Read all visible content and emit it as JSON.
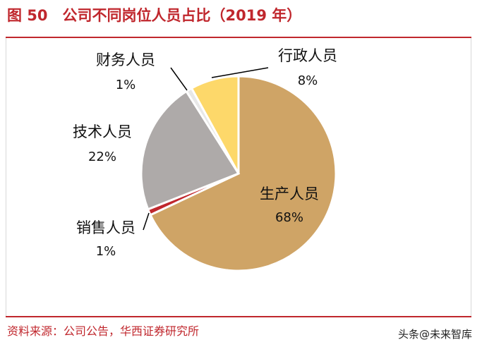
{
  "figure": {
    "title": "图 50　公司不同岗位人员占比（2019 年）",
    "source": "资料来源：公司公告，华西证券研究所",
    "watermark": "头条@未来智库"
  },
  "colors": {
    "accent": "#c0272d",
    "production": "#cfa466",
    "sales": "#c0272d",
    "tech": "#aeaaa9",
    "finance": "#e8e8e8",
    "admin": "#fdd86a"
  },
  "chart_data": {
    "type": "pie",
    "title": "公司不同岗位人员占比（2019 年）",
    "slices": [
      {
        "name": "生产人员",
        "value": 68,
        "label": "68%",
        "color": "#cfa466"
      },
      {
        "name": "销售人员",
        "value": 1,
        "label": "1%",
        "color": "#c0272d"
      },
      {
        "name": "技术人员",
        "value": 22,
        "label": "22%",
        "color": "#aeaaa9"
      },
      {
        "name": "财务人员",
        "value": 1,
        "label": "1%",
        "color": "#e8e8e8"
      },
      {
        "name": "行政人员",
        "value": 8,
        "label": "8%",
        "color": "#fdd86a"
      }
    ],
    "start_angle": "top (12 o'clock), clockwise",
    "legend": "none"
  }
}
